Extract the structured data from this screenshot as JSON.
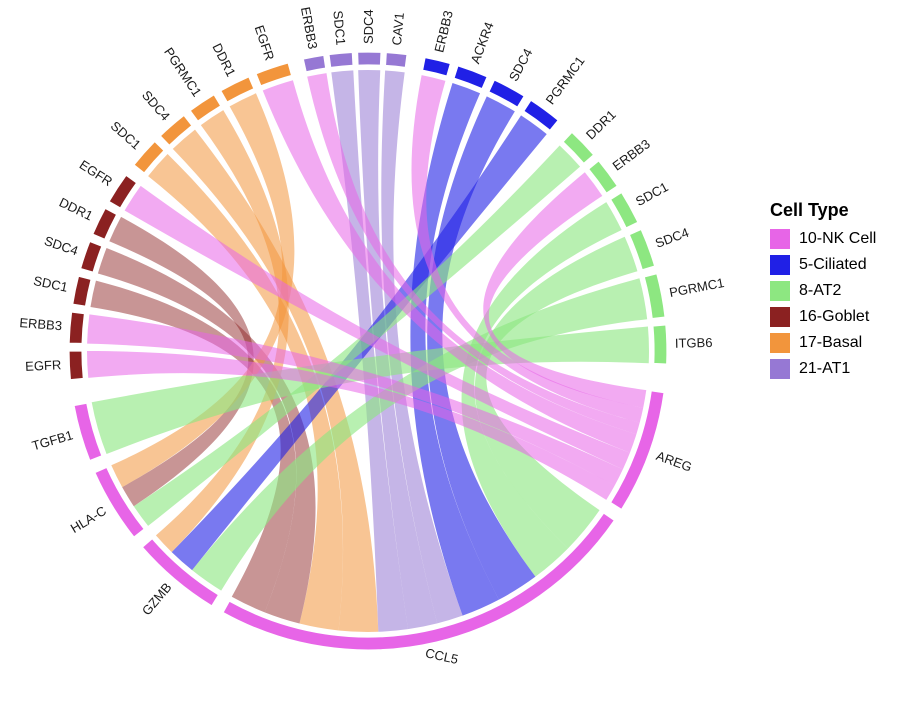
{
  "page": {
    "background": "#FFFFFF"
  },
  "chart_data": {
    "type": "chord",
    "title": "",
    "description": "Chord diagram of ligand-receptor interactions between NK cells and other airway cell types; outer arcs colored by cell type, gene sector labels around the circle, translucent ribbons linking ligands (AREG, CCL5, GZMB, HLA-C, TGFB1) on NK cells to receptors on other cell types.",
    "legend": {
      "title": "Cell Type",
      "items": [
        {
          "label": "10-NK Cell",
          "color": "#E765E7"
        },
        {
          "label": "5-Ciliated",
          "color": "#2020E6"
        },
        {
          "label": "8-AT2",
          "color": "#8DE781"
        },
        {
          "label": "16-Goblet",
          "color": "#8B2121"
        },
        {
          "label": "17-Basal",
          "color": "#F2953C"
        },
        {
          "label": "21-AT1",
          "color": "#9678D4"
        }
      ]
    },
    "groups": [
      {
        "cell_type": "21-AT1",
        "color": "#9678D4",
        "sectors": [
          {
            "id": "AT1.ERBB3",
            "label": "ERBB3",
            "start": 347.5,
            "end": 351.5
          },
          {
            "id": "AT1.SDC1",
            "label": "SDC1",
            "start": 352.5,
            "end": 357
          },
          {
            "id": "AT1.SDC4",
            "label": "SDC4",
            "start": 358,
            "end": 362.5
          },
          {
            "id": "AT1.CAV1",
            "label": "CAV1",
            "start": 363.5,
            "end": 367.5
          }
        ]
      },
      {
        "cell_type": "5-Ciliated",
        "color": "#2020E6",
        "sectors": [
          {
            "id": "CIL.ERBB3",
            "label": "ERBB3",
            "start": 11,
            "end": 16
          },
          {
            "id": "CIL.ACKR4",
            "label": "ACKR4",
            "start": 17.5,
            "end": 23.5
          },
          {
            "id": "CIL.SDC4",
            "label": "SDC4",
            "start": 25,
            "end": 31.5
          },
          {
            "id": "CIL.PGRMC1",
            "label": "PGRMC1",
            "start": 33,
            "end": 39.5
          }
        ]
      },
      {
        "cell_type": "8-AT2",
        "color": "#8DE781",
        "sectors": [
          {
            "id": "AT2.DDR1",
            "label": "DDR1",
            "start": 43,
            "end": 49
          },
          {
            "id": "AT2.ERBB3",
            "label": "ERBB3",
            "start": 50.5,
            "end": 56.5
          },
          {
            "id": "AT2.SDC1",
            "label": "SDC1",
            "start": 58,
            "end": 64.5
          },
          {
            "id": "AT2.SDC4",
            "label": "SDC4",
            "start": 66,
            "end": 73.5
          },
          {
            "id": "AT2.PGRMC1",
            "label": "PGRMC1",
            "start": 75,
            "end": 83.5
          },
          {
            "id": "AT2.ITGB6",
            "label": "ITGB6",
            "start": 85,
            "end": 92.5
          }
        ]
      },
      {
        "cell_type": "10-NK Cell",
        "color": "#E765E7",
        "sectors": [
          {
            "id": "NK.AREG",
            "label": "AREG",
            "start": 98,
            "end": 122
          },
          {
            "id": "NK.CCL5",
            "label": "CCL5",
            "start": 124.5,
            "end": 209,
            "rot": 12
          },
          {
            "id": "NK.GZMB",
            "label": "GZMB",
            "start": 211.5,
            "end": 229
          },
          {
            "id": "NK.HLAC",
            "label": "HLA-C",
            "start": 231.5,
            "end": 246
          },
          {
            "id": "NK.TGFB1",
            "label": "TGFB1",
            "start": 248.5,
            "end": 259.5
          }
        ]
      },
      {
        "cell_type": "16-Goblet",
        "color": "#8B2121",
        "sectors": [
          {
            "id": "GOB.EGFR1",
            "label": "EGFR",
            "start": 264.5,
            "end": 270
          },
          {
            "id": "GOB.ERBB3",
            "label": "ERBB3",
            "start": 271.5,
            "end": 277.5
          },
          {
            "id": "GOB.SDC1",
            "label": "SDC1",
            "start": 279,
            "end": 284.5
          },
          {
            "id": "GOB.SDC4",
            "label": "SDC4",
            "start": 286,
            "end": 291.5
          },
          {
            "id": "GOB.DDR1",
            "label": "DDR1",
            "start": 293,
            "end": 298.5
          },
          {
            "id": "GOB.EGFR2",
            "label": "EGFR",
            "start": 300,
            "end": 306
          }
        ]
      },
      {
        "cell_type": "17-Basal",
        "color": "#F2953C",
        "sectors": [
          {
            "id": "BAS.SDC1",
            "label": "SDC1",
            "start": 308.5,
            "end": 314.5
          },
          {
            "id": "BAS.SDC4",
            "label": "SDC4",
            "start": 316,
            "end": 322
          },
          {
            "id": "BAS.PGRMC1",
            "label": "PGRMC1",
            "start": 323.5,
            "end": 329
          },
          {
            "id": "BAS.DDR1",
            "label": "DDR1",
            "start": 330.5,
            "end": 336.5
          },
          {
            "id": "BAS.EGFR",
            "label": "EGFR",
            "start": 338,
            "end": 344.5
          }
        ]
      }
    ],
    "links": [
      {
        "from": "AT2.SDC4",
        "to": "NK.CCL5",
        "s": 124.5,
        "e": 134.64,
        "color": "#8DE781",
        "op": 0.62
      },
      {
        "from": "AT2.SDC1",
        "to": "NK.CCL5",
        "s": 134.64,
        "e": 143.43,
        "color": "#8DE781",
        "op": 0.62
      },
      {
        "from": "CIL.SDC4",
        "to": "NK.CCL5",
        "s": 143.43,
        "e": 152.22,
        "color": "#2020E6",
        "op": 0.6
      },
      {
        "from": "CIL.ACKR4",
        "to": "NK.CCL5",
        "s": 152.22,
        "e": 160.33,
        "color": "#2020E6",
        "op": 0.6
      },
      {
        "from": "AT1.CAV1",
        "to": "NK.CCL5",
        "s": 160.33,
        "e": 165.74,
        "color": "#9678D4",
        "op": 0.55
      },
      {
        "from": "AT1.SDC4",
        "to": "NK.CCL5",
        "s": 165.74,
        "e": 171.82,
        "color": "#9678D4",
        "op": 0.55
      },
      {
        "from": "AT1.SDC1",
        "to": "NK.CCL5",
        "s": 171.82,
        "e": 177.9,
        "color": "#9678D4",
        "op": 0.55
      },
      {
        "from": "BAS.SDC4",
        "to": "NK.CCL5",
        "s": 177.9,
        "e": 186.01,
        "color": "#F2953C",
        "op": 0.55
      },
      {
        "from": "BAS.SDC1",
        "to": "NK.CCL5",
        "s": 186.01,
        "e": 194.12,
        "color": "#F2953C",
        "op": 0.55
      },
      {
        "from": "GOB.SDC4",
        "to": "NK.CCL5",
        "s": 194.12,
        "e": 201.56,
        "color": "#8B2121",
        "op": 0.48
      },
      {
        "from": "GOB.SDC1",
        "to": "NK.CCL5",
        "s": 201.56,
        "e": 209,
        "color": "#8B2121",
        "op": 0.48
      },
      {
        "from": "AT2.PGRMC1",
        "to": "NK.GZMB",
        "s": 211.5,
        "e": 218.76,
        "color": "#8DE781",
        "op": 0.62
      },
      {
        "from": "CIL.PGRMC1",
        "to": "NK.GZMB",
        "s": 218.76,
        "e": 224.31,
        "color": "#2020E6",
        "op": 0.6
      },
      {
        "from": "BAS.PGRMC1",
        "to": "NK.GZMB",
        "s": 224.31,
        "e": 229,
        "color": "#F2953C",
        "op": 0.55
      },
      {
        "from": "AT2.DDR1",
        "to": "NK.HLAC",
        "s": 231.5,
        "e": 236.47,
        "color": "#8DE781",
        "op": 0.62
      },
      {
        "from": "GOB.DDR1",
        "to": "NK.HLAC",
        "s": 236.47,
        "e": 241.03,
        "color": "#8B2121",
        "op": 0.48
      },
      {
        "from": "BAS.DDR1",
        "to": "NK.HLAC",
        "s": 241.03,
        "e": 246,
        "color": "#F2953C",
        "op": 0.55
      },
      {
        "from": "AT2.ITGB6",
        "to": "NK.TGFB1",
        "s": 248.5,
        "e": 259.5,
        "color": "#8DE781",
        "op": 0.62
      },
      {
        "from": "AT2.ERBB3",
        "to": "NK.AREG",
        "s": 98,
        "e": 101.69,
        "color": "#E765E7",
        "op": 0.55
      },
      {
        "from": "CIL.ERBB3",
        "to": "NK.AREG",
        "s": 101.69,
        "e": 104.77,
        "color": "#E765E7",
        "op": 0.55
      },
      {
        "from": "AT1.ERBB3",
        "to": "NK.AREG",
        "s": 104.77,
        "e": 107.23,
        "color": "#E765E7",
        "op": 0.55
      },
      {
        "from": "BAS.EGFR",
        "to": "NK.AREG",
        "s": 107.23,
        "e": 111.23,
        "color": "#E765E7",
        "op": 0.55
      },
      {
        "from": "GOB.EGFR2",
        "to": "NK.AREG",
        "s": 111.23,
        "e": 114.92,
        "color": "#E765E7",
        "op": 0.55
      },
      {
        "from": "GOB.ERBB3",
        "to": "NK.AREG",
        "s": 114.92,
        "e": 118.61,
        "color": "#E765E7",
        "op": 0.55
      },
      {
        "from": "GOB.EGFR1",
        "to": "NK.AREG",
        "s": 118.61,
        "e": 122,
        "color": "#E765E7",
        "op": 0.55
      }
    ]
  }
}
